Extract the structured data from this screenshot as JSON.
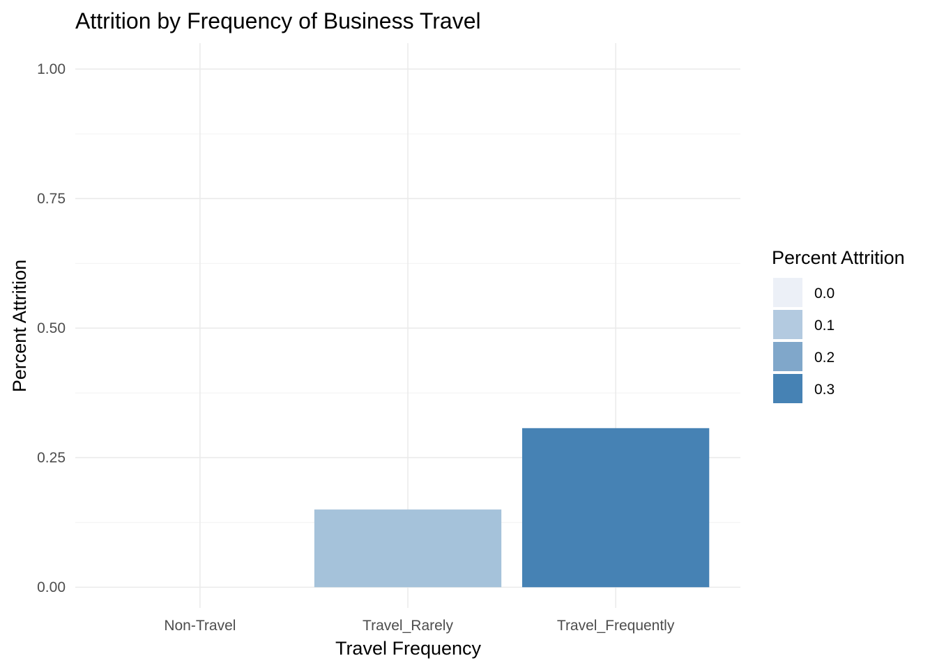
{
  "chart_data": {
    "type": "bar",
    "title": "Attrition by Frequency of Business Travel",
    "xlabel": "Travel Frequency",
    "ylabel": "Percent Attrition",
    "categories": [
      "Non-Travel",
      "Travel_Rarely",
      "Travel_Frequently"
    ],
    "values": [
      0.0,
      0.15,
      0.307
    ],
    "ylim": [
      -0.04,
      1.05
    ],
    "yticks": [
      0.0,
      0.25,
      0.5,
      0.75,
      1.0
    ],
    "ytick_labels": [
      "0.00",
      "0.25",
      "0.50",
      "0.75",
      "1.00"
    ],
    "grid": true,
    "legend": {
      "title": "Percent Attrition",
      "placement": "right",
      "entries": [
        {
          "label": "0.0",
          "color": "#ecf0f7"
        },
        {
          "label": "0.1",
          "color": "#b3cae0"
        },
        {
          "label": "0.2",
          "color": "#80a7ca"
        },
        {
          "label": "0.3",
          "color": "#4682b4"
        }
      ]
    },
    "fill_scale": {
      "low": "#ffffff",
      "high": "#4682b4",
      "domain": [
        0.0,
        0.307
      ]
    }
  }
}
